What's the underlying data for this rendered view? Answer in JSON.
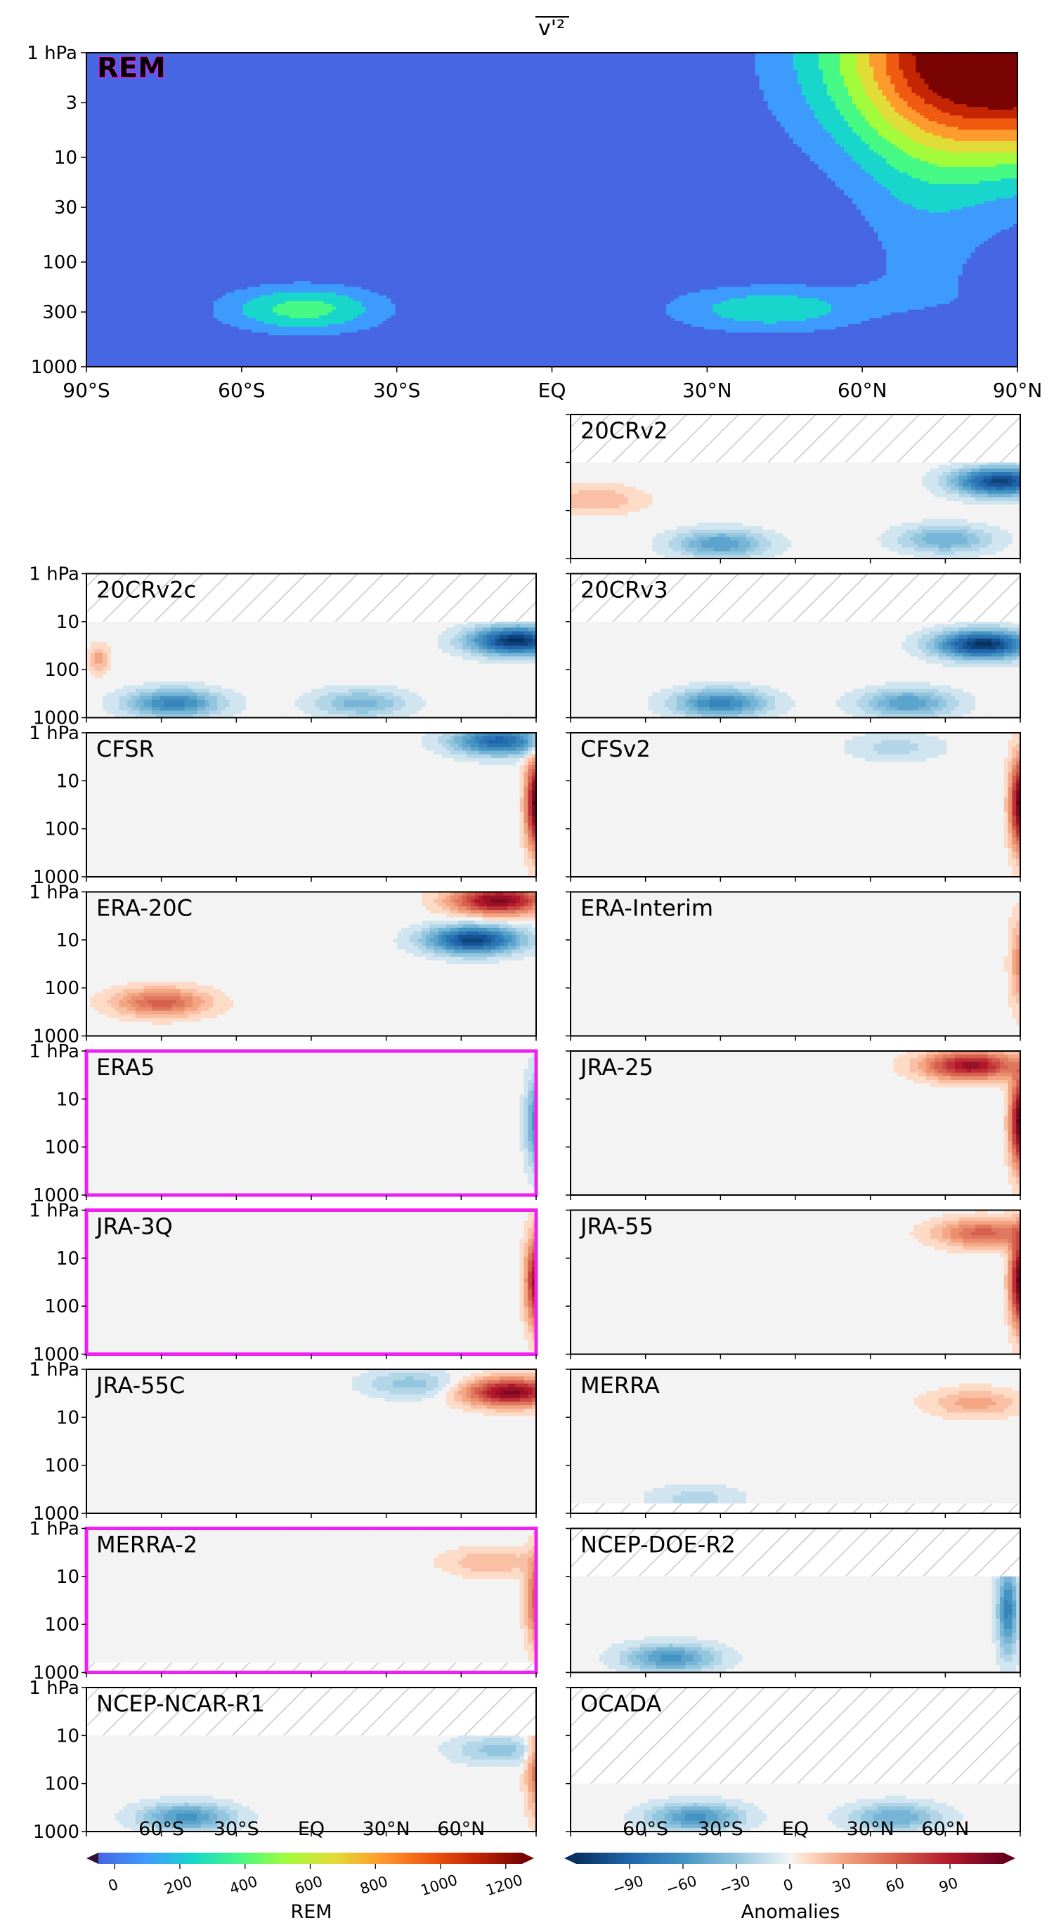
{
  "chart_data": [
    {
      "type": "heatmap",
      "title": "v'²",
      "panel_label": "REM",
      "x_ticks": [
        "90°S",
        "60°S",
        "30°S",
        "EQ",
        "30°N",
        "60°N",
        "90°N"
      ],
      "y_ticks": [
        "1 hPa",
        "3",
        "10",
        "30",
        "100",
        "300",
        "1000"
      ],
      "y_scale": "log",
      "ylim": [
        1000,
        1
      ],
      "xlim": [
        -90,
        90
      ],
      "maxima": [
        {
          "lat": -48,
          "p": 280,
          "value": 450
        },
        {
          "lat": 45,
          "p": 280,
          "value": 350
        },
        {
          "lat": 85,
          "p": 1.5,
          "value": 1250
        }
      ]
    },
    {
      "type": "heatmap",
      "layout": "grid-2-columns",
      "y_ticks": [
        "1 hPa",
        "10",
        "100",
        "1000"
      ],
      "panels": [
        {
          "name": "20CRv2",
          "column": "right",
          "row": 0,
          "top_missing_hPa": 10,
          "features": [
            {
              "lat": 60,
              "p": 400,
              "value": -45
            },
            {
              "lat": -30,
              "p": 500,
              "value": -55
            },
            {
              "lat": 82,
              "p": 25,
              "value": -110
            },
            {
              "lat": -80,
              "p": 60,
              "value": 25
            }
          ]
        },
        {
          "name": "20CRv2c",
          "column": "left",
          "row": 1,
          "top_missing_hPa": 10,
          "features": [
            {
              "lat": -55,
              "p": 500,
              "value": -70
            },
            {
              "lat": 20,
              "p": 500,
              "value": -40
            },
            {
              "lat": 82,
              "p": 25,
              "value": -120
            },
            {
              "lat": -85,
              "p": 60,
              "value": 30
            }
          ]
        },
        {
          "name": "20CRv3",
          "column": "right",
          "row": 1,
          "top_missing_hPa": 10,
          "features": [
            {
              "lat": -30,
              "p": 500,
              "value": -70
            },
            {
              "lat": 45,
              "p": 500,
              "value": -55
            },
            {
              "lat": 75,
              "p": 30,
              "value": -120
            }
          ]
        },
        {
          "name": "CFSR",
          "column": "left",
          "row": 2,
          "features": [
            {
              "lat": 75,
              "p": 1.5,
              "value": -90
            },
            {
              "lat": 90,
              "p": 30,
              "value": 120
            }
          ]
        },
        {
          "name": "CFSv2",
          "column": "right",
          "row": 2,
          "features": [
            {
              "lat": 40,
              "p": 2,
              "value": -20
            },
            {
              "lat": 90,
              "p": 30,
              "value": 120
            }
          ]
        },
        {
          "name": "ERA-20C",
          "column": "left",
          "row": 3,
          "features": [
            {
              "lat": 75,
              "p": 1.5,
              "value": 110
            },
            {
              "lat": 65,
              "p": 10,
              "value": -110
            },
            {
              "lat": -60,
              "p": 200,
              "value": 60
            }
          ]
        },
        {
          "name": "ERA-Interim",
          "column": "right",
          "row": 3,
          "features": [
            {
              "lat": 90,
              "p": 30,
              "value": 40
            }
          ]
        },
        {
          "name": "ERA5",
          "column": "left",
          "row": 4,
          "highlight": true,
          "features": [
            {
              "lat": 90,
              "p": 30,
              "value": -60
            }
          ]
        },
        {
          "name": "JRA-25",
          "column": "right",
          "row": 4,
          "features": [
            {
              "lat": 70,
              "p": 2,
              "value": 100
            },
            {
              "lat": 90,
              "p": 30,
              "value": 120
            }
          ]
        },
        {
          "name": "JRA-3Q",
          "column": "left",
          "row": 5,
          "highlight": true,
          "features": [
            {
              "lat": 90,
              "p": 30,
              "value": 100
            }
          ]
        },
        {
          "name": "JRA-55",
          "column": "right",
          "row": 5,
          "features": [
            {
              "lat": 75,
              "p": 3,
              "value": 60
            },
            {
              "lat": 90,
              "p": 30,
              "value": 120
            }
          ]
        },
        {
          "name": "JRA-55C",
          "column": "left",
          "row": 6,
          "features": [
            {
              "lat": 80,
              "p": 3,
              "value": 110
            },
            {
              "lat": 40,
              "p": 2,
              "value": -30
            }
          ]
        },
        {
          "name": "MERRA",
          "column": "right",
          "row": 6,
          "bottom_missing": true,
          "features": [
            {
              "lat": 72,
              "p": 5,
              "value": 30
            },
            {
              "lat": -40,
              "p": 500,
              "value": -20
            }
          ]
        },
        {
          "name": "MERRA-2",
          "column": "left",
          "row": 7,
          "highlight": true,
          "bottom_missing": true,
          "features": [
            {
              "lat": 72,
              "p": 5,
              "value": 25
            },
            {
              "lat": 90,
              "p": 30,
              "value": 60
            }
          ]
        },
        {
          "name": "NCEP-DOE-R2",
          "column": "right",
          "row": 7,
          "top_missing_hPa": 10,
          "features": [
            {
              "lat": -50,
              "p": 500,
              "value": -60
            },
            {
              "lat": 85,
              "p": 50,
              "value": -70
            }
          ]
        },
        {
          "name": "NCEP-NCAR-R1",
          "column": "left",
          "row": 8,
          "top_missing_hPa": 10,
          "features": [
            {
              "lat": -50,
              "p": 500,
              "value": -60
            },
            {
              "lat": 75,
              "p": 20,
              "value": -30
            },
            {
              "lat": 90,
              "p": 50,
              "value": 50
            }
          ]
        },
        {
          "name": "OCADA",
          "column": "right",
          "row": 8,
          "top_missing_hPa": 100,
          "features": [
            {
              "lat": -40,
              "p": 500,
              "value": -60
            },
            {
              "lat": 40,
              "p": 500,
              "value": -45
            }
          ]
        }
      ],
      "x_ticks": [
        "60°S",
        "30°S",
        "EQ",
        "30°N",
        "60°N"
      ]
    }
  ],
  "colorbars": [
    {
      "label": "REM",
      "ticks": [
        "0",
        "200",
        "400",
        "600",
        "800",
        "1000",
        "1200"
      ],
      "min": -50,
      "max": 1250,
      "colormap": "turbo"
    },
    {
      "label": "Anomalies",
      "ticks": [
        "−90",
        "−60",
        "−30",
        "0",
        "30",
        "60",
        "90"
      ],
      "min": -120,
      "max": 120,
      "colormap": "RdBu_r"
    }
  ],
  "colors": {
    "highlight": "#ee22ee",
    "hatch": "#c8c8c8"
  }
}
